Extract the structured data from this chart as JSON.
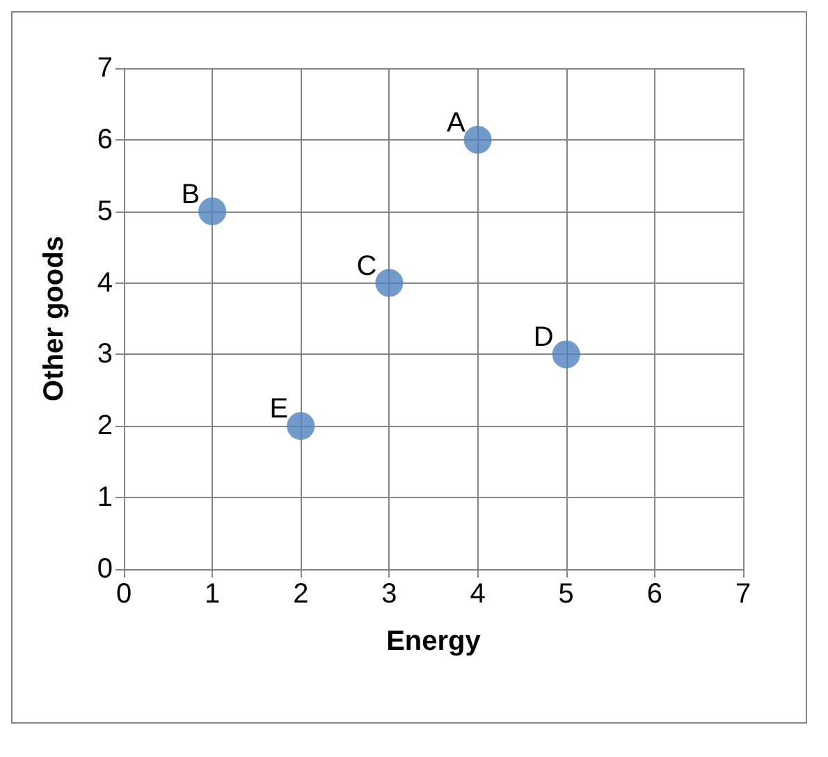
{
  "chart_data": {
    "type": "scatter",
    "xlabel": "Energy",
    "ylabel": "Other goods",
    "x": [
      4,
      1,
      3,
      5,
      2
    ],
    "values": [
      6,
      5,
      4,
      3,
      2
    ],
    "color": "#4f81bd",
    "xlim": [
      0,
      7
    ],
    "ylim": [
      0,
      7
    ],
    "xticks": [
      0,
      1,
      2,
      3,
      4,
      5,
      6,
      7
    ],
    "yticks": [
      0,
      1,
      2,
      3,
      4,
      5,
      6,
      7
    ],
    "grid": true,
    "marker": "circle",
    "annotations": [
      {
        "text": "A",
        "x": 4,
        "y": 6
      },
      {
        "text": "B",
        "x": 1,
        "y": 5
      },
      {
        "text": "C",
        "x": 3,
        "y": 4
      },
      {
        "text": "D",
        "x": 5,
        "y": 3
      },
      {
        "text": "E",
        "x": 2,
        "y": 2
      }
    ]
  }
}
